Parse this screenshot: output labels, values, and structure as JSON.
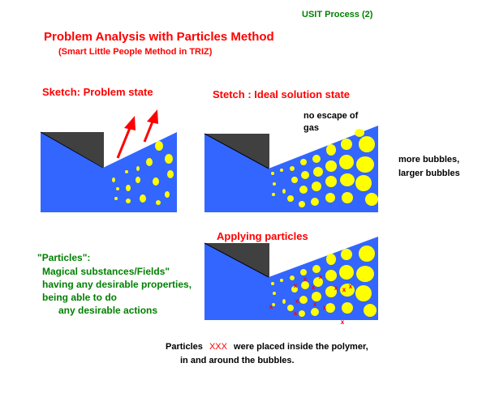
{
  "header": {
    "process_label": "USIT Process (2)",
    "title": "Problem Analysis with Particles Method",
    "subtitle": "(Smart Little People Method in TRIZ)"
  },
  "panels": {
    "sketch_label": "Sketch:  Problem state",
    "ideal_label": "Stetch : Ideal solution state",
    "applying_label": "Applying particles"
  },
  "notes": {
    "no_escape_line1": "no escape of",
    "no_escape_line2": "gas",
    "more_bubbles_line1": "more bubbles,",
    "more_bubbles_line2": "larger bubbles"
  },
  "particles_definition": {
    "heading": "\"Particles\":",
    "line1": "Magical substances/Fields\"",
    "line2": "having any desirable properties,",
    "line3": "being able to do",
    "line4": "any desirable actions"
  },
  "footer": {
    "prefix": "Particles",
    "marker": "XXX",
    "suffix": "were placed inside the polymer,",
    "line2": "in and around the bubbles."
  },
  "colors": {
    "green_text": "#008000",
    "red_text": "#ff0000",
    "polymer": "#3366ff",
    "block": "#404040",
    "bubble": "#ffff00",
    "particle": "#ff0000"
  }
}
